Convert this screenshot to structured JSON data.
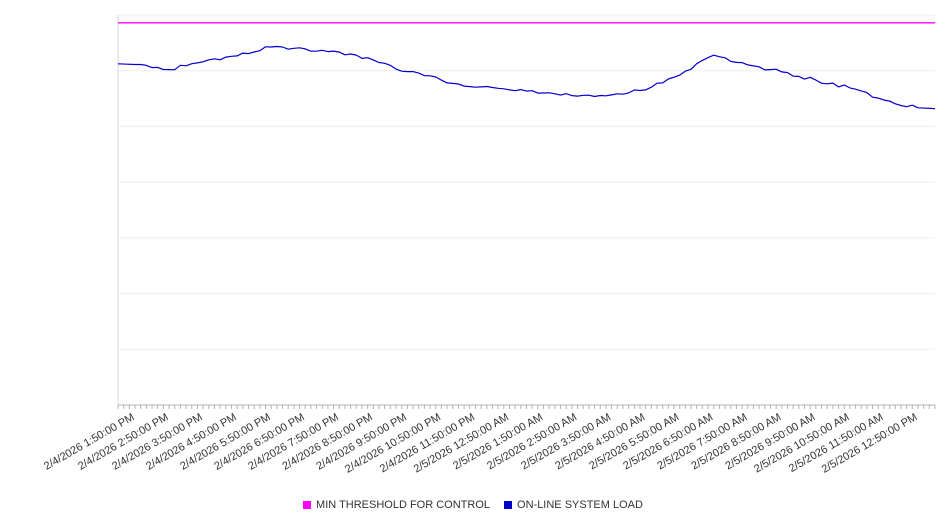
{
  "chart_data": {
    "type": "line",
    "title": "",
    "xlabel": "",
    "ylabel": "",
    "y_axis_tick_labels_visible": false,
    "ylim": [
      0,
      100
    ],
    "grid": {
      "horizontal": true,
      "vertical": false,
      "divisions": 7
    },
    "legend_position": "bottom-center",
    "categories": [
      "2/4/2026 1:50:00 PM",
      "2/4/2026 2:50:00 PM",
      "2/4/2026 3:50:00 PM",
      "2/4/2026 4:50:00 PM",
      "2/4/2026 5:50:00 PM",
      "2/4/2026 6:50:00 PM",
      "2/4/2026 7:50:00 PM",
      "2/4/2026 8:50:00 PM",
      "2/4/2026 9:50:00 PM",
      "2/4/2026 10:50:00 PM",
      "2/4/2026 11:50:00 PM",
      "2/5/2026 12:50:00 AM",
      "2/5/2026 1:50:00 AM",
      "2/5/2026 2:50:00 AM",
      "2/5/2026 3:50:00 AM",
      "2/5/2026 4:50:00 AM",
      "2/5/2026 5:50:00 AM",
      "2/5/2026 6:50:00 AM",
      "2/5/2026 7:50:00 AM",
      "2/5/2026 8:50:00 AM",
      "2/5/2026 9:50:00 AM",
      "2/5/2026 10:50:00 AM",
      "2/5/2026 11:50:00 AM",
      "2/5/2026 12:50:00 PM"
    ],
    "series": [
      {
        "name": "MIN THRESHOLD FOR CONTROL",
        "color": "#ff00ff",
        "style": "constant",
        "value": 98
      },
      {
        "name": "ON-LINE SYSTEM LOAD",
        "color": "#0000cd",
        "style": "line",
        "values": [
          87.3,
          86.0,
          88.0,
          89.5,
          91.8,
          91.3,
          90.5,
          88.5,
          85.5,
          83.3,
          81.5,
          80.8,
          80.0,
          79.2,
          79.5,
          80.8,
          84.6,
          89.7,
          87.2,
          85.4,
          83.3,
          81.3,
          78.2,
          76.2
        ]
      }
    ]
  }
}
